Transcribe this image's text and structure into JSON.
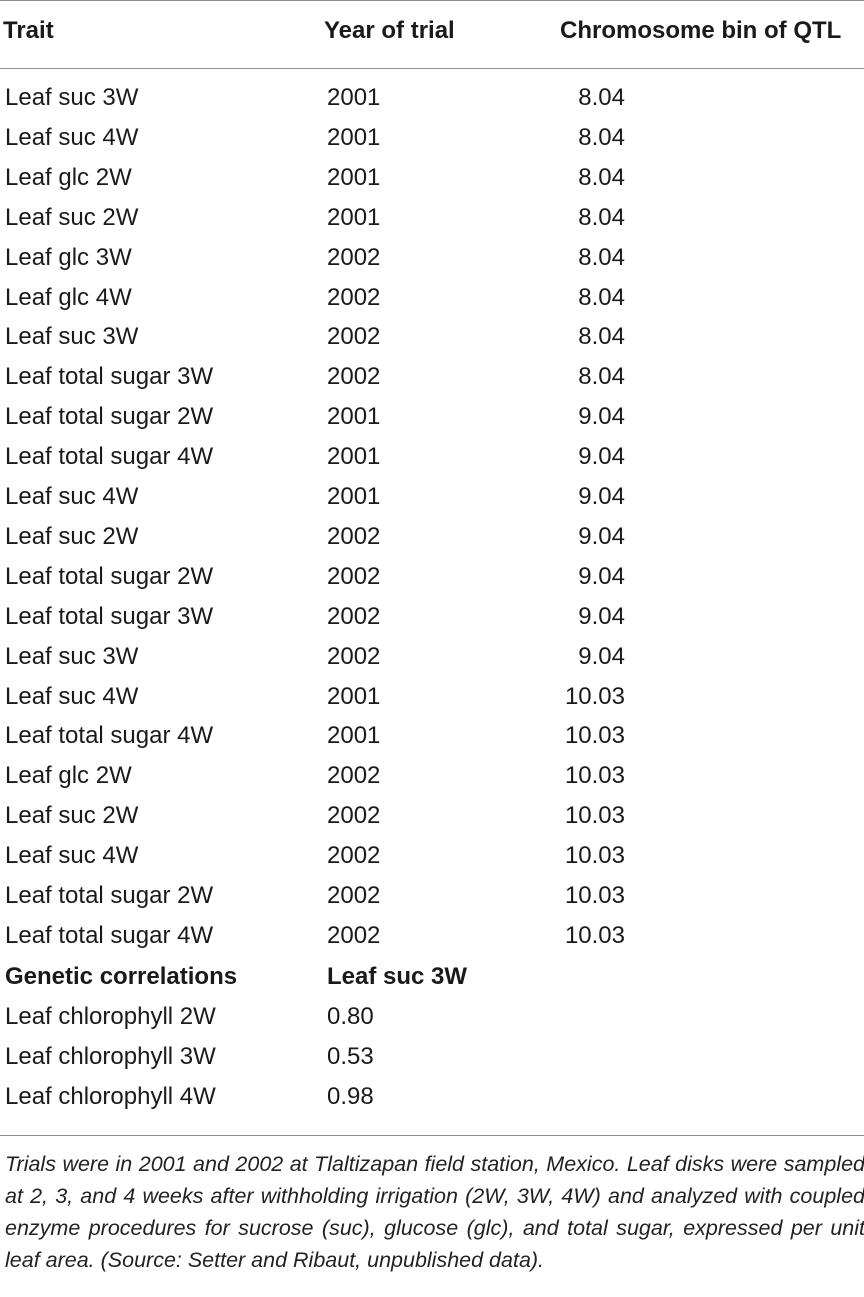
{
  "header": {
    "trait": "Trait",
    "year": "Year of trial",
    "bin": "Chromosome bin of QTL"
  },
  "rows": [
    {
      "trait": "Leaf suc 3W",
      "year": "2001",
      "bin": "8.04"
    },
    {
      "trait": "Leaf suc 4W",
      "year": "2001",
      "bin": "8.04"
    },
    {
      "trait": "Leaf glc 2W",
      "year": "2001",
      "bin": "8.04"
    },
    {
      "trait": "Leaf suc 2W",
      "year": "2001",
      "bin": "8.04"
    },
    {
      "trait": "Leaf glc 3W",
      "year": "2002",
      "bin": "8.04"
    },
    {
      "trait": "Leaf glc 4W",
      "year": "2002",
      "bin": "8.04"
    },
    {
      "trait": "Leaf suc 3W",
      "year": "2002",
      "bin": "8.04"
    },
    {
      "trait": "Leaf total sugar 3W",
      "year": "2002",
      "bin": "8.04"
    },
    {
      "trait": "Leaf total sugar 2W",
      "year": "2001",
      "bin": "9.04"
    },
    {
      "trait": "Leaf total sugar 4W",
      "year": "2001",
      "bin": "9.04"
    },
    {
      "trait": "Leaf suc 4W",
      "year": "2001",
      "bin": "9.04"
    },
    {
      "trait": "Leaf suc 2W",
      "year": "2002",
      "bin": "9.04"
    },
    {
      "trait": "Leaf total sugar 2W",
      "year": "2002",
      "bin": "9.04"
    },
    {
      "trait": "Leaf total sugar 3W",
      "year": "2002",
      "bin": "9.04"
    },
    {
      "trait": "Leaf suc 3W",
      "year": "2002",
      "bin": "9.04"
    },
    {
      "trait": "Leaf suc 4W",
      "year": "2001",
      "bin": "10.03"
    },
    {
      "trait": "Leaf total sugar 4W",
      "year": "2001",
      "bin": "10.03"
    },
    {
      "trait": "Leaf glc 2W",
      "year": "2002",
      "bin": "10.03"
    },
    {
      "trait": "Leaf suc 2W",
      "year": "2002",
      "bin": "10.03"
    },
    {
      "trait": "Leaf suc 4W",
      "year": "2002",
      "bin": "10.03"
    },
    {
      "trait": "Leaf total sugar 2W",
      "year": "2002",
      "bin": "10.03"
    },
    {
      "trait": "Leaf total sugar 4W",
      "year": "2002",
      "bin": "10.03"
    }
  ],
  "correlations": {
    "title": "Genetic correlations",
    "column": "Leaf suc 3W",
    "rows": [
      {
        "trait": "Leaf chlorophyll 2W",
        "value": "0.80"
      },
      {
        "trait": "Leaf chlorophyll 3W",
        "value": "0.53"
      },
      {
        "trait": "Leaf chlorophyll 4W",
        "value": "0.98"
      }
    ]
  },
  "footnote": "Trials were in 2001 and 2002 at Tlaltizapan field station, Mexico. Leaf disks were sampled at 2, 3, and 4 weeks after withholding irrigation (2W, 3W, 4W) and analyzed with coupled enzyme procedures for sucrose (suc), glucose (glc), and total sugar, expressed per unit leaf area. (Source: Setter and Ribaut, unpublished data)."
}
